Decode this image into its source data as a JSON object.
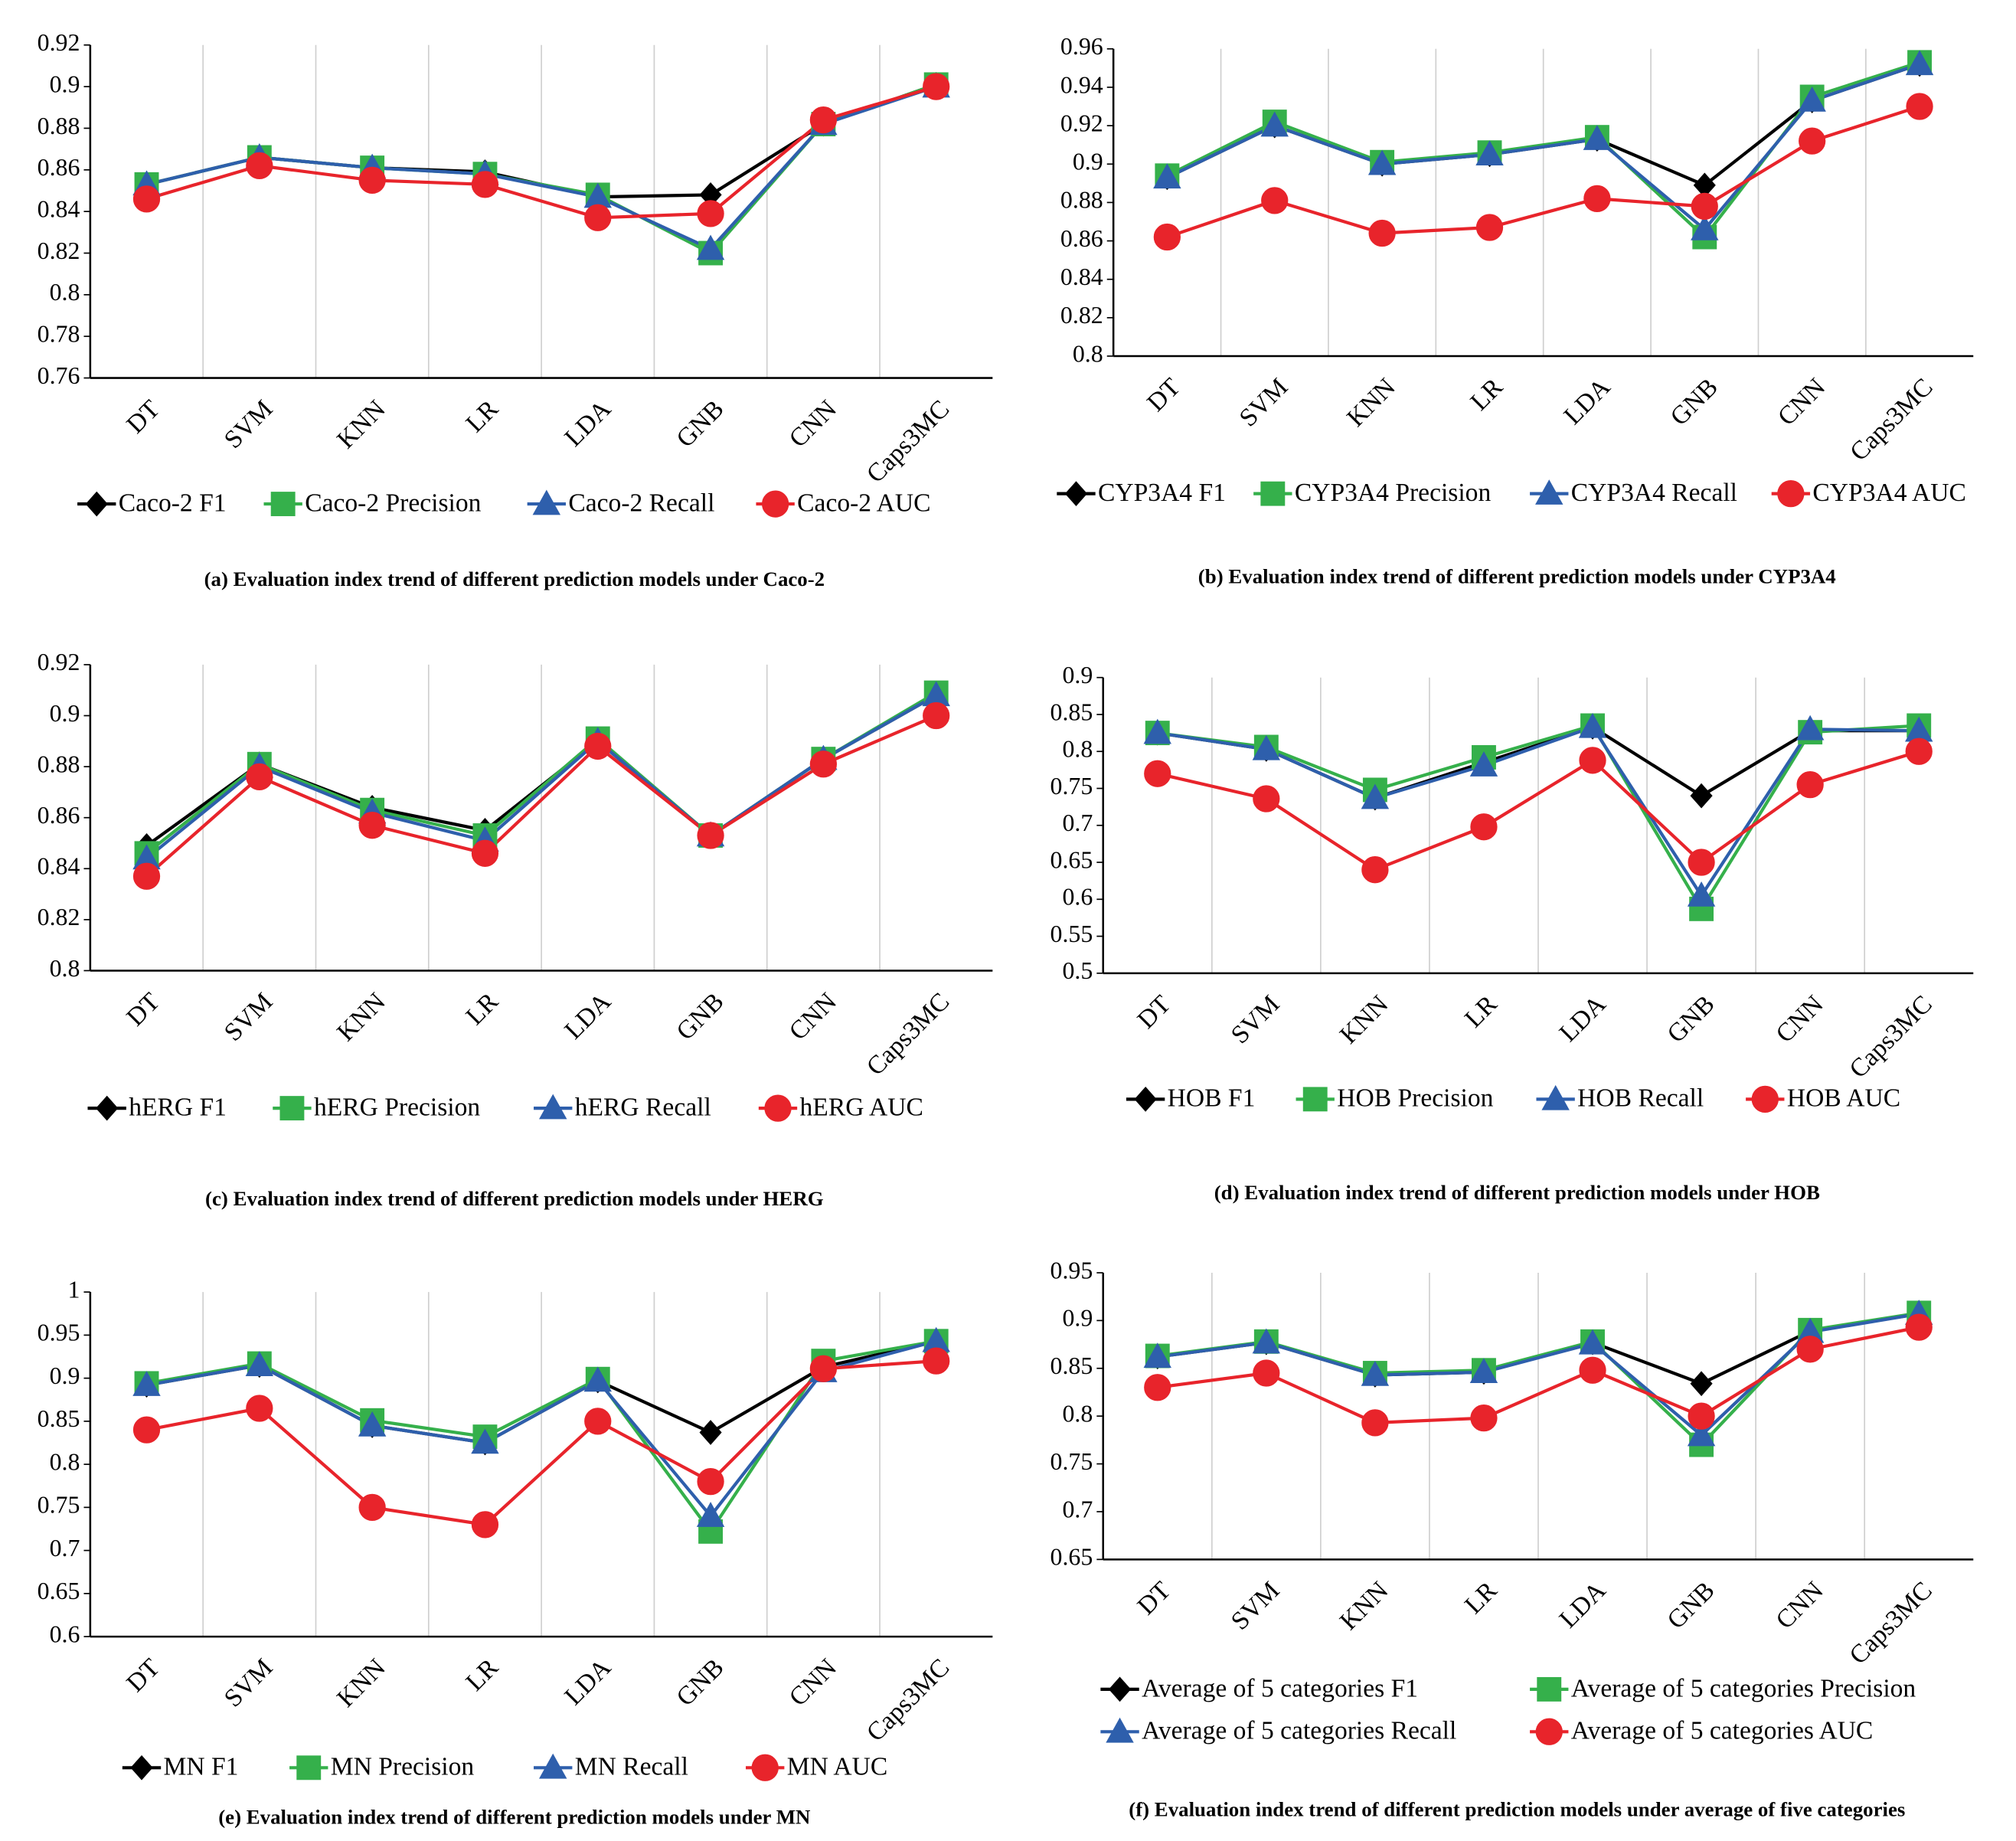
{
  "chart_data": [
    {
      "type": "line",
      "title": "(a) Evaluation index trend of different prediction models under Caco-2",
      "categories": [
        "DT",
        "SVM",
        "KNN",
        "LR",
        "LDA",
        "GNB",
        "CNN",
        "Caps3MC"
      ],
      "ylim": [
        0.76,
        0.92
      ],
      "yticks": [
        0.76,
        0.78,
        0.8,
        0.82,
        0.84,
        0.86,
        0.88,
        0.9,
        0.92
      ],
      "series": [
        {
          "name": "Caco-2 F1",
          "color": "#000000",
          "values": [
            0.853,
            0.866,
            0.861,
            0.859,
            0.847,
            0.848,
            0.882,
            0.901
          ]
        },
        {
          "name": "Caco-2 Precision",
          "color": "#35b04b",
          "values": [
            0.853,
            0.866,
            0.861,
            0.858,
            0.848,
            0.82,
            0.882,
            0.901
          ]
        },
        {
          "name": "Caco-2 Recall",
          "color": "#2e5fac",
          "values": [
            0.853,
            0.866,
            0.861,
            0.858,
            0.847,
            0.822,
            0.882,
            0.9
          ]
        },
        {
          "name": "Caco-2 AUC",
          "color": "#e8242b",
          "values": [
            0.846,
            0.862,
            0.855,
            0.853,
            0.837,
            0.839,
            0.884,
            0.9
          ]
        }
      ]
    },
    {
      "type": "line",
      "title": "(b)  Evaluation index trend of different prediction models under CYP3A4",
      "categories": [
        "DT",
        "SVM",
        "KNN",
        "LR",
        "LDA",
        "GNB",
        "CNN",
        "Caps3MC"
      ],
      "ylim": [
        0.8,
        0.96
      ],
      "yticks": [
        0.8,
        0.82,
        0.84,
        0.86,
        0.88,
        0.9,
        0.92,
        0.94,
        0.96
      ],
      "series": [
        {
          "name": "CYP3A4 F1",
          "color": "#000000",
          "values": [
            0.893,
            0.92,
            0.9,
            0.905,
            0.913,
            0.889,
            0.933,
            0.952
          ]
        },
        {
          "name": "CYP3A4 Precision",
          "color": "#35b04b",
          "values": [
            0.894,
            0.922,
            0.901,
            0.906,
            0.914,
            0.862,
            0.935,
            0.953
          ]
        },
        {
          "name": "CYP3A4 Recall",
          "color": "#2e5fac",
          "values": [
            0.893,
            0.92,
            0.9,
            0.905,
            0.913,
            0.866,
            0.933,
            0.952
          ]
        },
        {
          "name": "CYP3A4 AUC",
          "color": "#e8242b",
          "values": [
            0.862,
            0.881,
            0.864,
            0.867,
            0.882,
            0.878,
            0.912,
            0.93
          ]
        }
      ]
    },
    {
      "type": "line",
      "title": "(c) Evaluation index trend of different prediction models under HERG",
      "categories": [
        "DT",
        "SVM",
        "KNN",
        "LR",
        "LDA",
        "GNB",
        "CNN",
        "Caps3MC"
      ],
      "ylim": [
        0.8,
        0.92
      ],
      "yticks": [
        0.8,
        0.82,
        0.84,
        0.86,
        0.88,
        0.9,
        0.92
      ],
      "series": [
        {
          "name": "hERG F1",
          "color": "#000000",
          "values": [
            0.849,
            0.881,
            0.864,
            0.855,
            0.89,
            0.853,
            0.883,
            0.908
          ]
        },
        {
          "name": "hERG Precision",
          "color": "#35b04b",
          "values": [
            0.846,
            0.881,
            0.863,
            0.853,
            0.891,
            0.853,
            0.883,
            0.909
          ]
        },
        {
          "name": "hERG Recall",
          "color": "#2e5fac",
          "values": [
            0.844,
            0.88,
            0.862,
            0.851,
            0.89,
            0.853,
            0.883,
            0.908
          ]
        },
        {
          "name": "hERG AUC",
          "color": "#e8242b",
          "values": [
            0.837,
            0.876,
            0.857,
            0.846,
            0.888,
            0.853,
            0.881,
            0.9
          ]
        }
      ]
    },
    {
      "type": "line",
      "title": "(d) Evaluation index trend of different prediction models under HOB",
      "categories": [
        "DT",
        "SVM",
        "KNN",
        "LR",
        "LDA",
        "GNB",
        "CNN",
        "Caps3MC"
      ],
      "ylim": [
        0.5,
        0.9
      ],
      "yticks": [
        0.5,
        0.55,
        0.6,
        0.65,
        0.7,
        0.75,
        0.8,
        0.85,
        0.9
      ],
      "series": [
        {
          "name": "HOB F1",
          "color": "#000000",
          "values": [
            0.825,
            0.803,
            0.737,
            0.785,
            0.833,
            0.74,
            0.828,
            0.828
          ]
        },
        {
          "name": "HOB Precision",
          "color": "#35b04b",
          "values": [
            0.825,
            0.806,
            0.748,
            0.792,
            0.835,
            0.587,
            0.826,
            0.835
          ]
        },
        {
          "name": "HOB Recall",
          "color": "#2e5fac",
          "values": [
            0.825,
            0.803,
            0.737,
            0.781,
            0.833,
            0.605,
            0.83,
            0.828
          ]
        },
        {
          "name": "HOB AUC",
          "color": "#e8242b",
          "values": [
            0.77,
            0.736,
            0.64,
            0.698,
            0.788,
            0.65,
            0.755,
            0.8
          ]
        }
      ]
    },
    {
      "type": "line",
      "title": "(e) Evaluation index trend of different prediction models under MN",
      "categories": [
        "DT",
        "SVM",
        "KNN",
        "LR",
        "LDA",
        "GNB",
        "CNN",
        "Caps3MC"
      ],
      "ylim": [
        0.6,
        1
      ],
      "yticks": [
        0.6,
        0.65,
        0.7,
        0.75,
        0.8,
        0.85,
        0.9,
        0.95,
        1
      ],
      "series": [
        {
          "name": "MN F1",
          "color": "#000000",
          "values": [
            0.892,
            0.915,
            0.845,
            0.825,
            0.897,
            0.837,
            0.913,
            0.943
          ]
        },
        {
          "name": "MN Precision",
          "color": "#35b04b",
          "values": [
            0.894,
            0.917,
            0.851,
            0.832,
            0.899,
            0.722,
            0.92,
            0.943
          ]
        },
        {
          "name": "MN Recall",
          "color": "#2e5fac",
          "values": [
            0.892,
            0.915,
            0.845,
            0.825,
            0.897,
            0.74,
            0.908,
            0.943
          ]
        },
        {
          "name": "MN AUC",
          "color": "#e8242b",
          "values": [
            0.84,
            0.865,
            0.75,
            0.73,
            0.85,
            0.78,
            0.911,
            0.92
          ]
        }
      ]
    },
    {
      "type": "line",
      "title": "(f) Evaluation index trend of different prediction models under average of five categories",
      "categories": [
        "DT",
        "SVM",
        "KNN",
        "LR",
        "LDA",
        "GNB",
        "CNN",
        "Caps3MC"
      ],
      "ylim": [
        0.65,
        0.95
      ],
      "yticks": [
        0.65,
        0.7,
        0.75,
        0.8,
        0.85,
        0.9,
        0.95
      ],
      "series": [
        {
          "name": "Average of 5 categories F1",
          "color": "#000000",
          "values": [
            0.862,
            0.877,
            0.843,
            0.846,
            0.877,
            0.834,
            0.889,
            0.907
          ]
        },
        {
          "name": "Average of 5 categories Precision",
          "color": "#35b04b",
          "values": [
            0.863,
            0.878,
            0.845,
            0.848,
            0.878,
            0.77,
            0.89,
            0.908
          ]
        },
        {
          "name": "Average of 5 categories Recall",
          "color": "#2e5fac",
          "values": [
            0.862,
            0.877,
            0.843,
            0.846,
            0.876,
            0.78,
            0.888,
            0.907
          ]
        },
        {
          "name": "Average of 5 categories AUC",
          "color": "#e8242b",
          "values": [
            0.83,
            0.845,
            0.793,
            0.798,
            0.848,
            0.8,
            0.87,
            0.893
          ]
        }
      ]
    }
  ]
}
